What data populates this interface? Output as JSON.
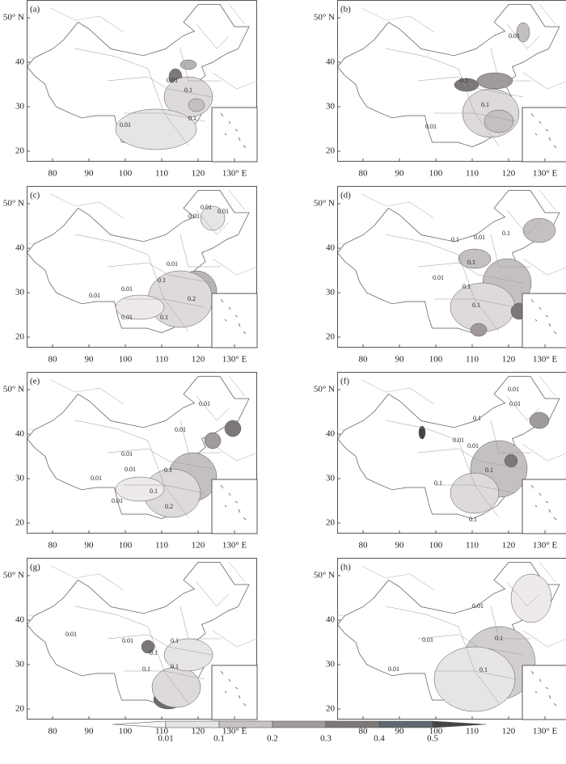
{
  "lat_labels": [
    "50° N",
    "40",
    "30",
    "20"
  ],
  "lon_labels": [
    "80",
    "90",
    "100",
    "110",
    "120",
    "130° E"
  ],
  "panels": [
    {
      "label": "(a)",
      "contour_labels": [
        "0.01",
        "0.1",
        "0.1",
        "0.01"
      ]
    },
    {
      "label": "(b)",
      "contour_labels": [
        "0.01",
        "0.1",
        "0.1",
        "0.01"
      ]
    },
    {
      "label": "(c)",
      "contour_labels": [
        "0.01",
        "0.01",
        "0.01",
        "0.01",
        "0.1",
        "0.2",
        "0.01",
        "0.01",
        "0.01",
        "0.1"
      ]
    },
    {
      "label": "(d)",
      "contour_labels": [
        "0.1",
        "0.01",
        "0.1",
        "0.1",
        "0.01",
        "0.1",
        "0.1"
      ]
    },
    {
      "label": "(e)",
      "contour_labels": [
        "0.01",
        "0.01",
        "0.01",
        "0.01",
        "0.01",
        "0.1",
        "0.1",
        "0.2",
        "0.01"
      ]
    },
    {
      "label": "(f)",
      "contour_labels": [
        "0.01",
        "0.01",
        "0.1",
        "0.01",
        "0.01",
        "0.1",
        "0.1",
        "0.1"
      ]
    },
    {
      "label": "(g)",
      "contour_labels": [
        "0.01",
        "0.01",
        "0.1",
        "0.1",
        "0.1",
        "0.1"
      ]
    },
    {
      "label": "(h)",
      "contour_labels": [
        "0.01",
        "0.01",
        "0.1",
        "0.01",
        "0.1"
      ]
    }
  ],
  "colorbar": {
    "labels": [
      "0.01",
      "0.1",
      "0.2",
      "0.3",
      "0.4",
      "0.5"
    ]
  }
}
